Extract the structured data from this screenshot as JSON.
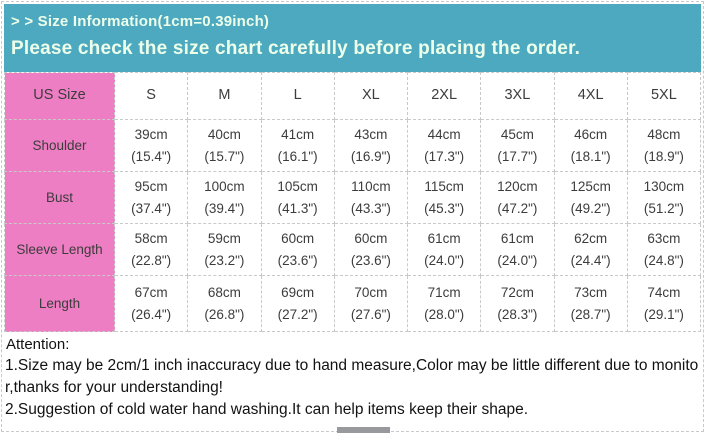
{
  "banner": {
    "line1": "> > Size Information(1cm=0.39inch)",
    "line2": "Please check the size chart carefully before placing the order."
  },
  "table": {
    "corner_label": "US Size",
    "sizes": [
      "S",
      "M",
      "L",
      "XL",
      "2XL",
      "3XL",
      "4XL",
      "5XL"
    ],
    "rows": [
      {
        "label": "Shoulder",
        "cells": [
          "39cm\n(15.4\")",
          "40cm\n(15.7\")",
          "41cm\n(16.1\")",
          "43cm\n(16.9\")",
          "44cm\n(17.3\")",
          "45cm\n(17.7\")",
          "46cm\n(18.1\")",
          "48cm\n(18.9\")"
        ]
      },
      {
        "label": "Bust",
        "cells": [
          "95cm\n(37.4\")",
          "100cm\n(39.4\")",
          "105cm\n(41.3\")",
          "110cm\n(43.3\")",
          "115cm\n(45.3\")",
          "120cm\n(47.2\")",
          "125cm\n(49.2\")",
          "130cm\n(51.2\")"
        ]
      },
      {
        "label": "Sleeve Length",
        "cells": [
          "58cm\n(22.8\")",
          "59cm\n(23.2\")",
          "60cm\n(23.6\")",
          "60cm\n(23.6\")",
          "61cm\n(24.0\")",
          "61cm\n(24.0\")",
          "62cm\n(24.4\")",
          "63cm\n(24.8\")"
        ]
      },
      {
        "label": "Length",
        "cells": [
          "67cm\n(26.4\")",
          "68cm\n(26.8\")",
          "69cm\n(27.2\")",
          "70cm\n(27.6\")",
          "71cm\n(28.0\")",
          "72cm\n(28.3\")",
          "73cm\n(28.7\")",
          "74cm\n(29.1\")"
        ]
      }
    ]
  },
  "notes": {
    "title": "Attention:",
    "note1": "1.Size may be 2cm/1 inch inaccuracy due to hand measure,Color may be little different due to monitor,thanks for your understanding!",
    "note2": "2.Suggestion of cold water hand washing.It can help items keep their shape."
  },
  "colors": {
    "banner_bg": "#4DA9BF",
    "banner_text": "#EDFFEA",
    "label_bg": "#EE7EC3",
    "cell_border": "#C9C9C9",
    "cell_text": "#3C3C3C"
  }
}
